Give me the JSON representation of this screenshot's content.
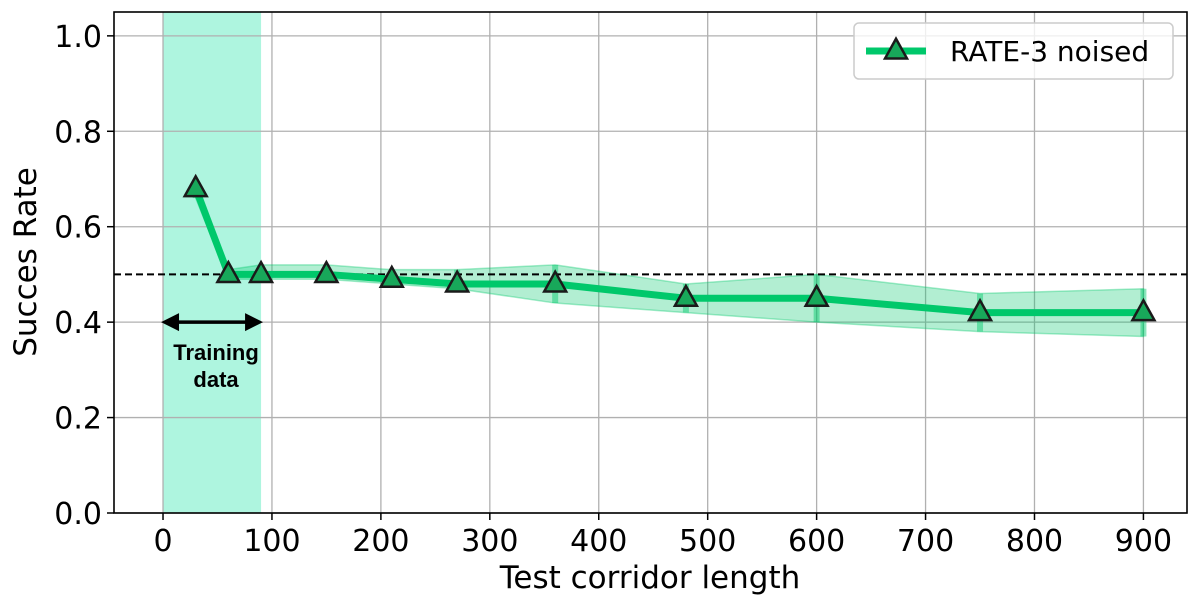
{
  "chart_data": {
    "type": "line",
    "title": "",
    "xlabel": "Test corridor length",
    "ylabel": "Succes Rate",
    "xlim": [
      -45,
      940
    ],
    "ylim": [
      0.0,
      1.05
    ],
    "x_ticks": [
      0,
      100,
      200,
      300,
      400,
      500,
      600,
      700,
      800,
      900
    ],
    "y_ticks": [
      0.0,
      0.2,
      0.4,
      0.6,
      0.8,
      1.0
    ],
    "x_tick_labels": [
      "0",
      "100",
      "200",
      "300",
      "400",
      "500",
      "600",
      "700",
      "800",
      "900"
    ],
    "y_tick_labels": [
      "0.0",
      "0.2",
      "0.4",
      "0.6",
      "0.8",
      "1.0"
    ],
    "grid": true,
    "legend_position": "top-right",
    "series": [
      {
        "name": "RATE-3 noised",
        "color": "#00c86b",
        "marker": "triangle",
        "x": [
          30,
          60,
          90,
          150,
          210,
          270,
          360,
          480,
          600,
          750,
          900
        ],
        "y": [
          0.68,
          0.5,
          0.5,
          0.5,
          0.49,
          0.48,
          0.48,
          0.45,
          0.45,
          0.42,
          0.42
        ],
        "y_lower": [
          0.66,
          0.49,
          0.49,
          0.49,
          0.48,
          0.47,
          0.44,
          0.42,
          0.4,
          0.38,
          0.37
        ],
        "y_upper": [
          0.7,
          0.51,
          0.52,
          0.52,
          0.51,
          0.51,
          0.52,
          0.48,
          0.5,
          0.46,
          0.47
        ]
      }
    ],
    "reference_line": {
      "y": 0.5,
      "style": "dashed",
      "color": "#000000"
    },
    "training_region": {
      "x_range": [
        0,
        90
      ],
      "color": "#aef5df",
      "label_lines": [
        "Training",
        "data"
      ]
    }
  }
}
